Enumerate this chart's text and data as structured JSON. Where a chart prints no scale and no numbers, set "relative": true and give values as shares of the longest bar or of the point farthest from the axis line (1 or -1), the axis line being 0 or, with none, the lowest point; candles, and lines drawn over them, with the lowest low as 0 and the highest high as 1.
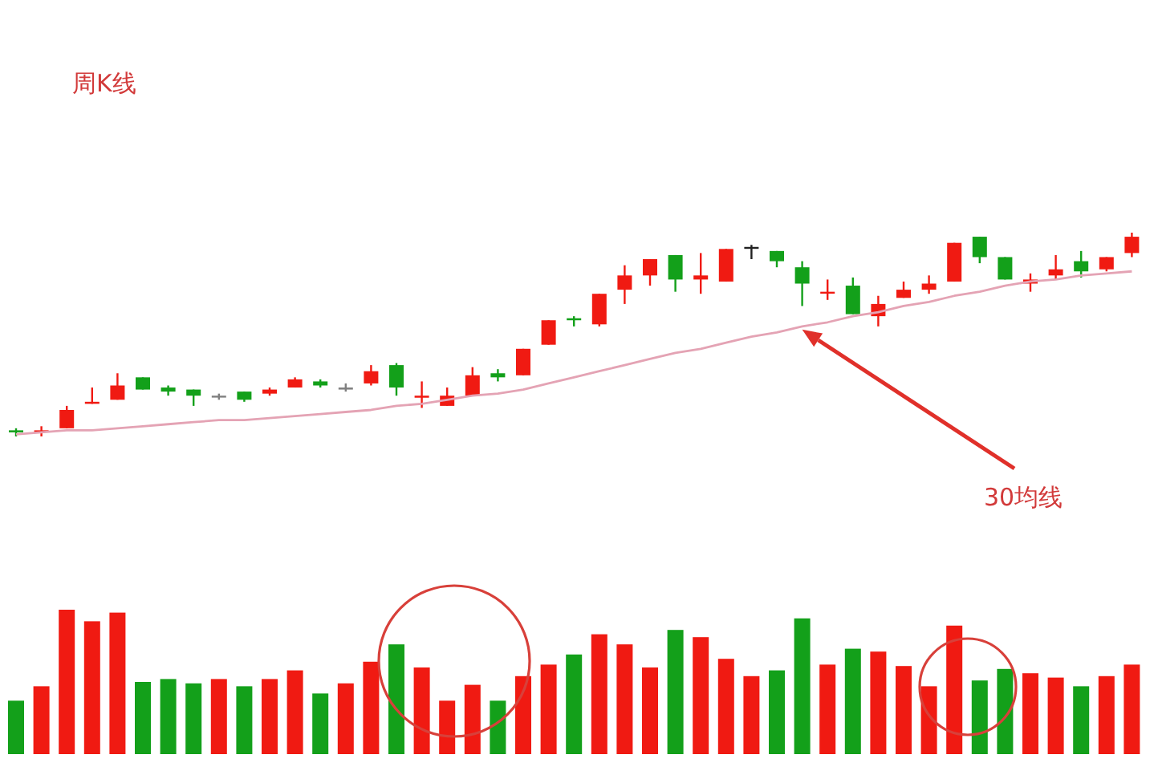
{
  "chart_data": [
    {
      "type": "candlestick",
      "title": "周K线",
      "relative": true,
      "annotations": [
        "30均线"
      ],
      "categories": [
        null,
        null,
        null,
        null,
        null,
        null,
        null,
        null,
        null,
        null,
        null,
        null,
        null,
        null,
        null,
        null,
        null,
        null,
        null,
        null,
        null,
        null,
        null,
        null,
        null,
        null,
        null,
        null,
        null,
        null,
        null,
        null,
        null,
        null,
        null,
        null,
        null,
        null,
        null,
        null,
        null,
        null,
        null,
        null,
        null
      ],
      "ohlc": [
        [
          0.03,
          0.04,
          0,
          0.02
        ],
        [
          0.02,
          0.05,
          0,
          0.03
        ],
        [
          0.04,
          0.15,
          0.04,
          0.13
        ],
        [
          0.16,
          0.24,
          0.16,
          0.17
        ],
        [
          0.18,
          0.31,
          0.18,
          0.25
        ],
        [
          0.29,
          0.29,
          0.23,
          0.23
        ],
        [
          0.24,
          0.25,
          0.2,
          0.22
        ],
        [
          0.23,
          0.23,
          0.15,
          0.2
        ],
        [
          0.2,
          0.21,
          0.18,
          0.2
        ],
        [
          0.22,
          0.22,
          0.17,
          0.18
        ],
        [
          0.21,
          0.24,
          0.2,
          0.23
        ],
        [
          0.24,
          0.29,
          0.24,
          0.28
        ],
        [
          0.27,
          0.28,
          0.24,
          0.25
        ],
        [
          0.24,
          0.26,
          0.22,
          0.23
        ],
        [
          0.26,
          0.35,
          0.25,
          0.32
        ],
        [
          0.35,
          0.36,
          0.2,
          0.24
        ],
        [
          0.19,
          0.27,
          0.14,
          0.2
        ],
        [
          0.15,
          0.24,
          0.15,
          0.2
        ],
        [
          0.2,
          0.34,
          0.2,
          0.3
        ],
        [
          0.31,
          0.33,
          0.27,
          0.29
        ],
        [
          0.3,
          0.43,
          0.3,
          0.43
        ],
        [
          0.45,
          0.57,
          0.45,
          0.57
        ],
        [
          0.58,
          0.59,
          0.54,
          0.57
        ],
        [
          0.55,
          0.7,
          0.54,
          0.7
        ],
        [
          0.72,
          0.84,
          0.65,
          0.79
        ],
        [
          0.79,
          0.87,
          0.74,
          0.87
        ],
        [
          0.89,
          0.89,
          0.71,
          0.77
        ],
        [
          0.77,
          0.9,
          0.7,
          0.79
        ],
        [
          0.76,
          0.92,
          0.76,
          0.92
        ],
        [
          0.93,
          0.94,
          0.87,
          0.93
        ],
        [
          0.91,
          0.91,
          0.83,
          0.86
        ],
        [
          0.83,
          0.86,
          0.64,
          0.75
        ],
        [
          0.71,
          0.77,
          0.67,
          0.71
        ],
        [
          0.74,
          0.78,
          0.6,
          0.6
        ],
        [
          0.59,
          0.69,
          0.54,
          0.65
        ],
        [
          0.68,
          0.76,
          0.68,
          0.72
        ],
        [
          0.72,
          0.79,
          0.7,
          0.75
        ],
        [
          0.76,
          0.95,
          0.76,
          0.95
        ],
        [
          0.98,
          0.98,
          0.85,
          0.88
        ],
        [
          0.88,
          0.88,
          0.77,
          0.77
        ],
        [
          0.75,
          0.8,
          0.71,
          0.77
        ],
        [
          0.79,
          0.89,
          0.77,
          0.82
        ],
        [
          0.86,
          0.91,
          0.78,
          0.81
        ],
        [
          0.82,
          0.88,
          0.81,
          0.88
        ],
        [
          0.9,
          1.0,
          0.88,
          0.98
        ]
      ],
      "colors": [
        "#13a01a",
        "#f01a12",
        "#f01a12",
        "#f01a12",
        "#f01a12",
        "#13a01a",
        "#13a01a",
        "#13a01a",
        "#808080",
        "#13a01a",
        "#f01a12",
        "#f01a12",
        "#13a01a",
        "#808080",
        "#f01a12",
        "#13a01a",
        "#f01a12",
        "#f01a12",
        "#f01a12",
        "#13a01a",
        "#f01a12",
        "#f01a12",
        "#13a01a",
        "#f01a12",
        "#f01a12",
        "#f01a12",
        "#13a01a",
        "#f01a12",
        "#f01a12",
        "#222222",
        "#13a01a",
        "#13a01a",
        "#f01a12",
        "#13a01a",
        "#f01a12",
        "#f01a12",
        "#f01a12",
        "#f01a12",
        "#13a01a",
        "#13a01a",
        "#f01a12",
        "#f01a12",
        "#13a01a",
        "#f01a12",
        "#f01a12"
      ],
      "series": [
        {
          "type": "line",
          "color": "#e4a3b4",
          "values": [
            0.01,
            0.02,
            0.03,
            0.03,
            0.04,
            0.05,
            0.06,
            0.07,
            0.08,
            0.08,
            0.09,
            0.1,
            0.11,
            0.12,
            0.13,
            0.15,
            0.16,
            0.18,
            0.2,
            0.21,
            0.23,
            0.26,
            0.29,
            0.32,
            0.35,
            0.38,
            0.41,
            0.43,
            0.46,
            0.49,
            0.51,
            0.54,
            0.56,
            0.59,
            0.61,
            0.64,
            0.66,
            0.69,
            0.71,
            0.74,
            0.76,
            0.77,
            0.79,
            0.8,
            0.81
          ]
        }
      ]
    },
    {
      "type": "bar",
      "relative": true,
      "categories": [
        null,
        null,
        null,
        null,
        null,
        null,
        null,
        null,
        null,
        null,
        null,
        null,
        null,
        null,
        null,
        null,
        null,
        null,
        null,
        null,
        null,
        null,
        null,
        null,
        null,
        null,
        null,
        null,
        null,
        null,
        null,
        null,
        null,
        null,
        null,
        null,
        null,
        null,
        null,
        null,
        null,
        null,
        null,
        null,
        null
      ],
      "values": [
        0.37,
        0.47,
        1,
        0.92,
        0.98,
        0.5,
        0.52,
        0.49,
        0.52,
        0.47,
        0.52,
        0.58,
        0.42,
        0.49,
        0.64,
        0.76,
        0.6,
        0.37,
        0.48,
        0.37,
        0.54,
        0.62,
        0.69,
        0.83,
        0.76,
        0.6,
        0.86,
        0.81,
        0.66,
        0.54,
        0.58,
        0.94,
        0.62,
        0.73,
        0.71,
        0.61,
        0.47,
        0.89,
        0.51,
        0.59,
        0.56,
        0.53,
        0.47,
        0.54,
        0.62
      ],
      "colors": [
        "#13a01a",
        "#f01a12",
        "#f01a12",
        "#f01a12",
        "#f01a12",
        "#13a01a",
        "#13a01a",
        "#13a01a",
        "#f01a12",
        "#13a01a",
        "#f01a12",
        "#f01a12",
        "#13a01a",
        "#f01a12",
        "#f01a12",
        "#13a01a",
        "#f01a12",
        "#f01a12",
        "#f01a12",
        "#13a01a",
        "#f01a12",
        "#f01a12",
        "#13a01a",
        "#f01a12",
        "#f01a12",
        "#f01a12",
        "#13a01a",
        "#f01a12",
        "#f01a12",
        "#f01a12",
        "#13a01a",
        "#13a01a",
        "#f01a12",
        "#13a01a",
        "#f01a12",
        "#f01a12",
        "#f01a12",
        "#f01a12",
        "#13a01a",
        "#13a01a",
        "#f01a12",
        "#f01a12",
        "#13a01a",
        "#f01a12",
        "#f01a12"
      ]
    }
  ]
}
